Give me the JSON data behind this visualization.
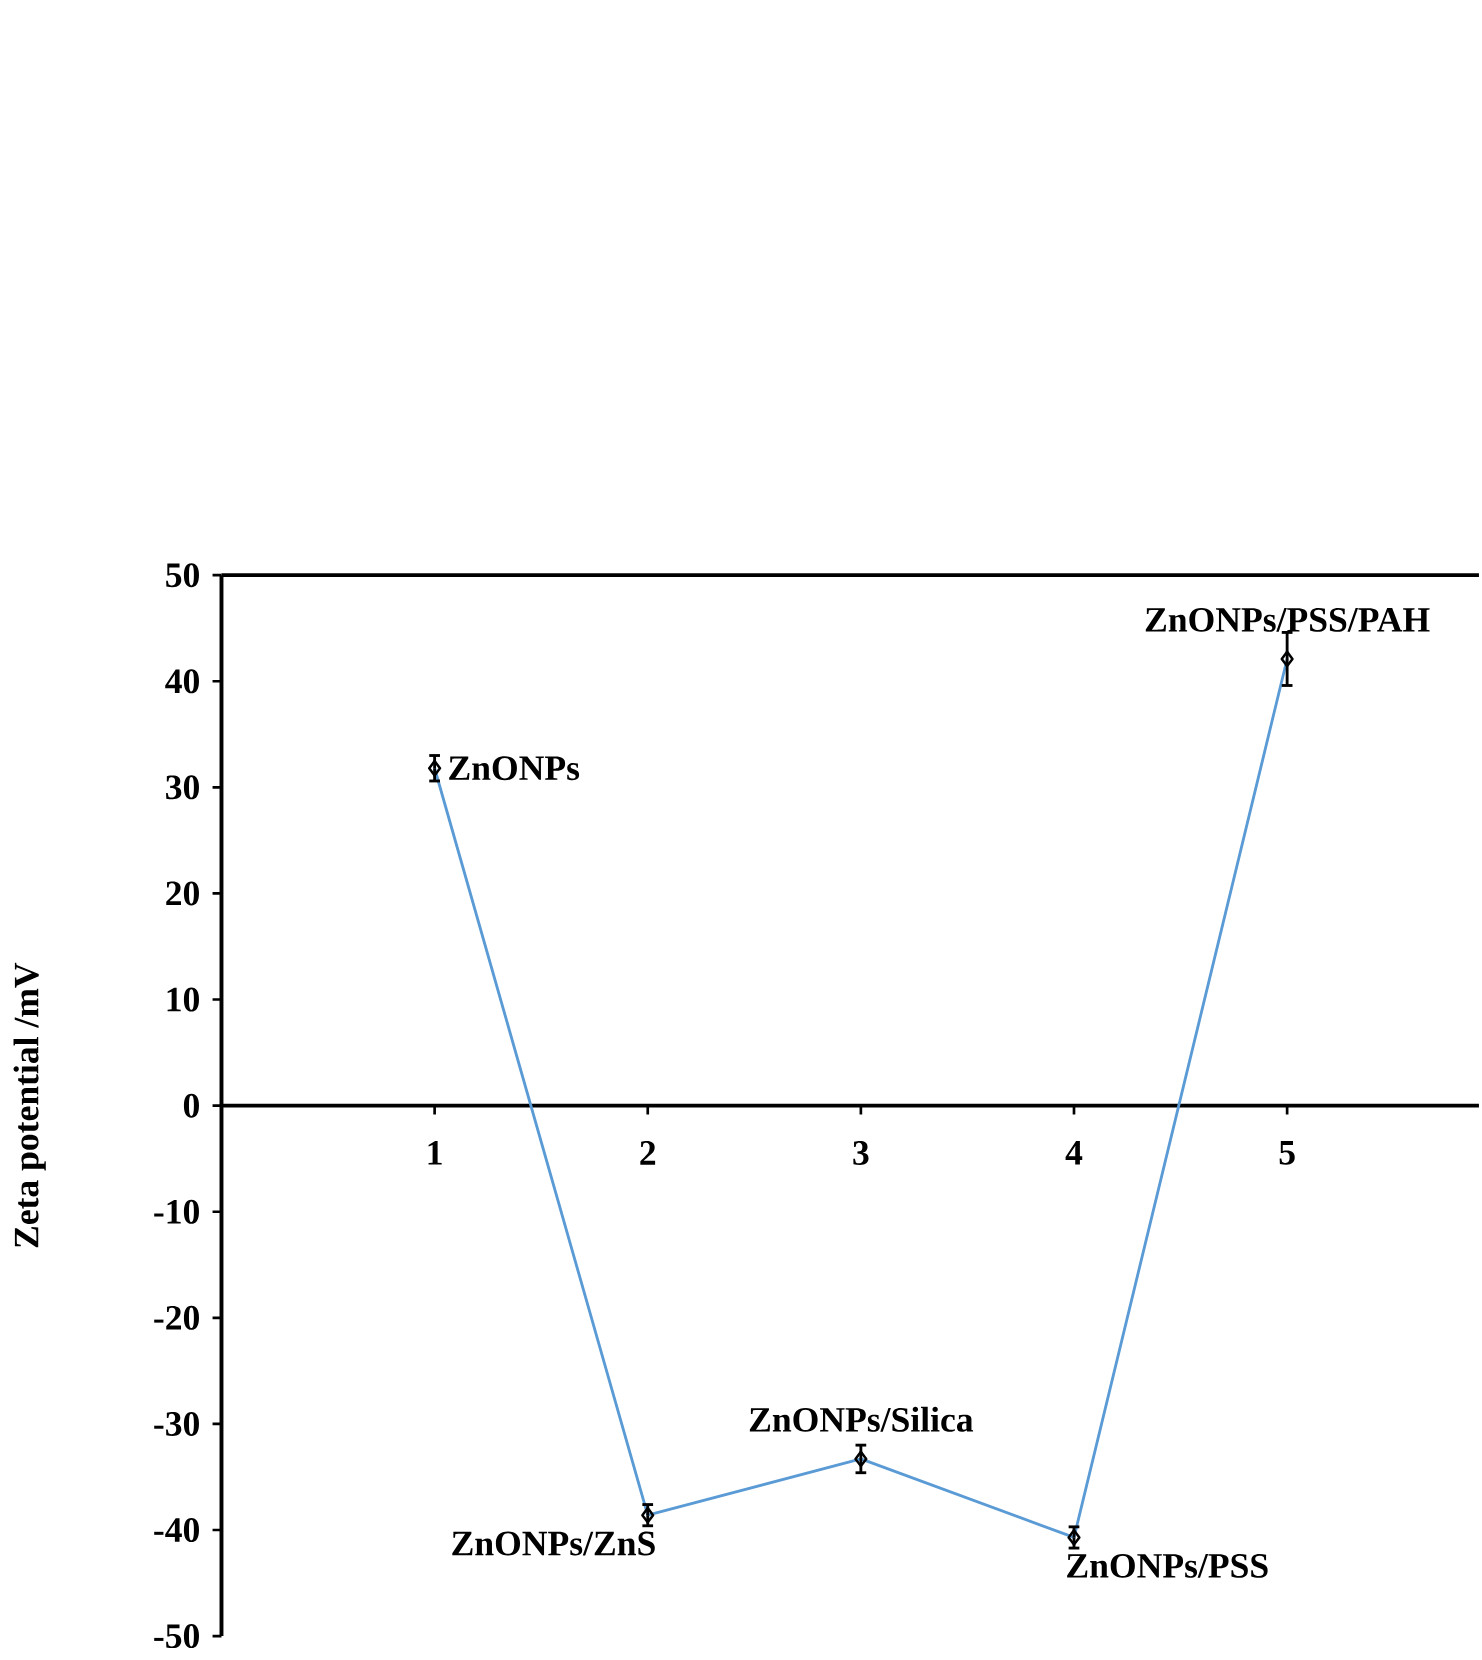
{
  "chart_data": {
    "type": "line",
    "ylabel": "Zeta potential /mV",
    "x": [
      1,
      2,
      3,
      4,
      5
    ],
    "series": [
      {
        "color": "#5b9bd5",
        "values": [
          31.8,
          -38.6,
          -33.3,
          -40.7,
          42.1
        ],
        "errors": [
          1.2,
          1.0,
          1.3,
          1.0,
          2.5
        ]
      }
    ],
    "xlim": [
      0,
      5.9
    ],
    "xticks": [
      1,
      2,
      3,
      4,
      5
    ],
    "ylim": [
      -50,
      50
    ],
    "yticks": [
      -50,
      -40,
      -30,
      -20,
      -10,
      0,
      10,
      20,
      30,
      40,
      50
    ],
    "marker": "diamond",
    "line_style": "solid",
    "grid": false,
    "legend": false,
    "annotations": [
      {
        "text": "ZnONPs",
        "x": 1,
        "y": 31.8
      },
      {
        "text": "ZnONPs/ZnS",
        "x": 2,
        "y": -38.6
      },
      {
        "text": "ZnONPs/Silica",
        "x": 3,
        "y": -33.3
      },
      {
        "text": "ZnONPs/PSS",
        "x": 4,
        "y": -40.7
      },
      {
        "text": "ZnONPs/PSS/PAH",
        "x": 5,
        "y": 42.1
      }
    ]
  }
}
